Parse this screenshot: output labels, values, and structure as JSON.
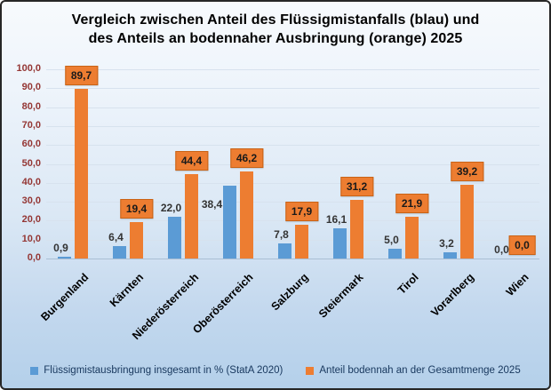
{
  "chart": {
    "title_lines": [
      "Vergleich zwischen Anteil des Flüssigmistanfalls (blau) und",
      "des Anteils an bodennaher Ausbringung (orange) 2025"
    ]
  },
  "chart_data": {
    "type": "bar",
    "title": "Vergleich zwischen Anteil des Flüssigmistanfalls (blau) und des Anteils an bodennaher Ausbringung (orange) 2025",
    "categories": [
      "Burgenland",
      "Kärnten",
      "Niederösterreich",
      "Oberösterreich",
      "Salzburg",
      "Steiermark",
      "Tirol",
      "Vorarlberg",
      "Wien"
    ],
    "series": [
      {
        "name": "Flüssigmistausbringung insgesamt in % (StatA 2020)",
        "color": "#5b9bd5",
        "values": [
          0.9,
          6.4,
          22.0,
          38.4,
          7.8,
          16.1,
          5.0,
          3.2,
          0.0
        ],
        "labels": [
          "0,9",
          "6,4",
          "22,0",
          "38,4",
          "7,8",
          "16,1",
          "5,0",
          "3,2",
          "0,0"
        ]
      },
      {
        "name": "Anteil bodennah an der Gesamtmenge 2025",
        "color": "#ed7d31",
        "values": [
          89.7,
          19.4,
          44.4,
          46.2,
          17.9,
          31.2,
          21.9,
          39.2,
          0.0
        ],
        "labels": [
          "89,7",
          "19,4",
          "44,4",
          "46,2",
          "17,9",
          "31,2",
          "21,9",
          "39,2",
          "0,0"
        ]
      }
    ],
    "xlabel": "",
    "ylabel": "",
    "ylim": [
      0,
      100
    ],
    "ytick_step": 10,
    "ytick_labels": [
      "0,0",
      "10,0",
      "20,0",
      "30,0",
      "40,0",
      "50,0",
      "60,0",
      "70,0",
      "80,0",
      "90,0",
      "100,0"
    ],
    "grid": true,
    "legend_position": "bottom",
    "decimal_separator": ",",
    "colors": {
      "blue_series": "#5b9bd5",
      "orange_series": "#ed7d31",
      "orange_label_box_border": "#c96316",
      "y_tick_text": "#943634",
      "legend_text": "#17375d",
      "background_top": "#f7fafd",
      "background_bottom": "#b4d0ea"
    }
  }
}
